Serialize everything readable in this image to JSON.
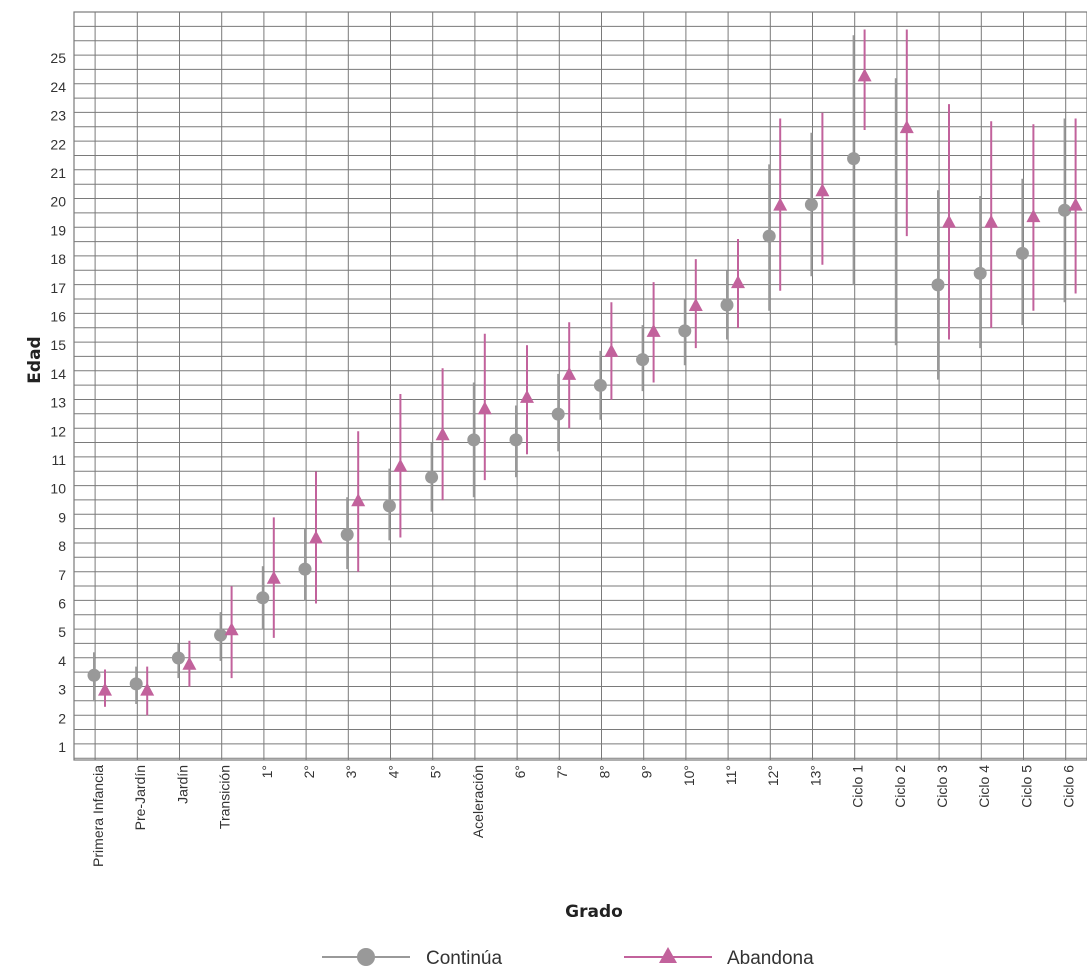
{
  "chart_data": {
    "type": "scatter",
    "xlabel": "Grado",
    "ylabel": "Edad",
    "ylim": [
      1,
      26
    ],
    "y_ticks": [
      1,
      2,
      3,
      4,
      5,
      6,
      7,
      8,
      9,
      10,
      11,
      12,
      13,
      14,
      15,
      16,
      17,
      18,
      19,
      20,
      21,
      22,
      23,
      24,
      25
    ],
    "grid": "on",
    "legend_position": "bottom",
    "categories": [
      "Primera Infancia",
      "Pre-Jardín",
      "Jardín",
      "Transición",
      "1°",
      "2°",
      "3°",
      "4°",
      "5°",
      "Aceleración",
      "6°",
      "7°",
      "8°",
      "9°",
      "10°",
      "11°",
      "12°",
      "13°",
      "Ciclo 1",
      "Ciclo 2",
      "Ciclo 3",
      "Ciclo 4",
      "Ciclo 5",
      "Ciclo 6"
    ],
    "series": [
      {
        "name": "Continúa",
        "color": "#999999",
        "marker": "circle",
        "values": [
          3.5,
          3.2,
          4.1,
          4.9,
          6.2,
          7.2,
          8.4,
          9.4,
          10.4,
          11.7,
          11.7,
          12.6,
          13.6,
          14.5,
          15.5,
          16.4,
          18.8,
          19.9,
          21.5,
          null,
          17.1,
          17.5,
          18.2,
          19.7
        ],
        "low": [
          2.6,
          2.5,
          3.4,
          4.0,
          5.1,
          6.1,
          7.2,
          8.2,
          9.2,
          9.7,
          10.4,
          11.3,
          12.4,
          13.4,
          14.3,
          15.2,
          16.2,
          17.4,
          17.1,
          15.0,
          13.8,
          14.9,
          15.7,
          16.5
        ],
        "high": [
          4.3,
          3.8,
          4.6,
          5.7,
          7.3,
          8.6,
          9.7,
          10.7,
          11.6,
          13.7,
          12.9,
          14.0,
          14.8,
          15.7,
          16.6,
          17.6,
          21.3,
          22.4,
          25.8,
          24.3,
          20.4,
          20.2,
          20.8,
          22.9
        ]
      },
      {
        "name": "Abandona",
        "color": "#c2629c",
        "marker": "triangle",
        "values": [
          3.0,
          3.0,
          3.9,
          5.1,
          6.9,
          8.3,
          9.6,
          10.8,
          11.9,
          12.8,
          13.2,
          14.0,
          14.8,
          15.5,
          16.4,
          17.2,
          19.9,
          20.4,
          24.4,
          22.6,
          19.3,
          19.3,
          19.5,
          19.9
        ],
        "low": [
          2.4,
          2.1,
          3.1,
          3.4,
          4.8,
          6.0,
          7.1,
          8.3,
          9.6,
          10.3,
          11.2,
          12.1,
          13.1,
          13.7,
          14.9,
          15.6,
          16.9,
          17.8,
          22.5,
          18.8,
          15.2,
          15.6,
          16.2,
          16.8
        ],
        "high": [
          3.7,
          3.8,
          4.7,
          6.6,
          9.0,
          10.6,
          12.0,
          13.3,
          14.2,
          15.4,
          15.0,
          15.8,
          16.5,
          17.2,
          18.0,
          18.7,
          22.9,
          23.1,
          26.0,
          26.0,
          23.4,
          22.8,
          22.7,
          22.9
        ]
      }
    ]
  }
}
